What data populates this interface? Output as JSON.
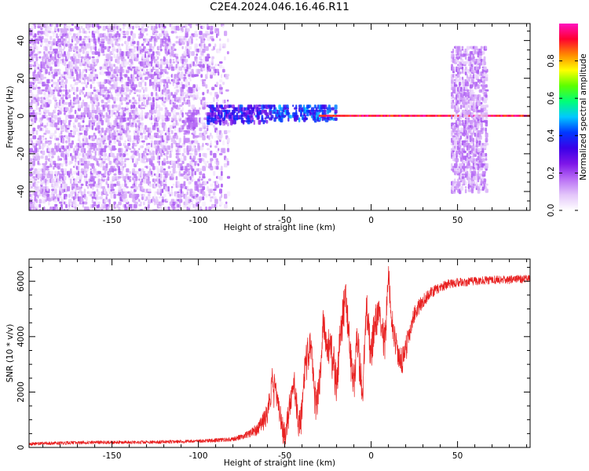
{
  "figure": {
    "title": "C2E4.2024.046.16.46.R11"
  },
  "colors": {
    "snr_line": "#e82020",
    "axes": "#000000",
    "colormap": [
      "#ffffff",
      "#e3c6fa",
      "#b96ff5",
      "#7e16e8",
      "#3a00e8",
      "#0038ff",
      "#00c8ff",
      "#00ff78",
      "#5cff00",
      "#ffff00",
      "#ff8a00",
      "#ff0030",
      "#ff10c0"
    ]
  },
  "chart_data": [
    {
      "type": "heatmap",
      "title": "",
      "xlabel": "Height of straight line (km)",
      "ylabel": "Frequency (Hz)",
      "xlim": [
        -198,
        92
      ],
      "ylim": [
        -50,
        49
      ],
      "x_ticks": [
        -150,
        -100,
        -50,
        0,
        50
      ],
      "y_ticks": [
        -40,
        -20,
        0,
        20,
        40
      ],
      "colorbar": {
        "label": "Normalized spectral amplitude",
        "range": [
          0,
          1
        ],
        "ticks": [
          "0.0",
          "0.2",
          "0.4",
          "0.6",
          "0.8"
        ],
        "tick_values": [
          0.0,
          0.2,
          0.4,
          0.6,
          0.8
        ]
      },
      "regions": [
        {
          "x": [
            -198,
            -82
          ],
          "f": [
            -50,
            49
          ],
          "amplitude": [
            0.02,
            0.2
          ],
          "description": "broadband noise"
        },
        {
          "x": [
            -107,
            -100
          ],
          "f": [
            -6,
            3
          ],
          "amplitude": [
            0.15,
            0.2
          ]
        },
        {
          "x": [
            -95,
            -60
          ],
          "f": [
            -4,
            6
          ],
          "amplitude": [
            0.2,
            0.45
          ]
        },
        {
          "x": [
            -60,
            -20
          ],
          "f": [
            -2,
            6
          ],
          "amplitude": [
            0.3,
            0.5
          ]
        },
        {
          "x": [
            -30,
            92
          ],
          "f": [
            -1,
            1
          ],
          "amplitude": [
            0.85,
            1.0
          ],
          "description": "narrow tone at 0 Hz"
        },
        {
          "x": [
            46,
            67
          ],
          "f": [
            -40,
            37
          ],
          "amplitude": [
            0.05,
            0.2
          ]
        }
      ]
    },
    {
      "type": "line",
      "title": "",
      "xlabel": "Height of straight line (km)",
      "ylabel": "SNR (10 * v/v)",
      "xlim": [
        -198,
        92
      ],
      "ylim": [
        0,
        6800
      ],
      "x_ticks": [
        -150,
        -100,
        -50,
        0,
        50
      ],
      "y_ticks": [
        0,
        2000,
        4000,
        6000
      ],
      "series": [
        {
          "x": [
            -198,
            -180,
            -160,
            -140,
            -120,
            -100,
            -90,
            -80,
            -75,
            -70,
            -65,
            -60,
            -57,
            -55,
            -52,
            -50,
            -48,
            -45,
            -42,
            -40,
            -38,
            -35,
            -32,
            -30,
            -28,
            -25,
            -22,
            -20,
            -18,
            -15,
            -13,
            -10,
            -8,
            -5,
            -3,
            0,
            2,
            5,
            8,
            10,
            12,
            15,
            18,
            20,
            25,
            30,
            35,
            40,
            45,
            50,
            60,
            70,
            80,
            92
          ],
          "y": [
            130,
            160,
            180,
            190,
            200,
            230,
            260,
            300,
            380,
            500,
            700,
            1200,
            2500,
            1900,
            900,
            500,
            1100,
            2500,
            900,
            1300,
            3100,
            3800,
            1500,
            2300,
            4400,
            3700,
            3300,
            2200,
            3900,
            5600,
            4100,
            2300,
            4200,
            1800,
            5200,
            3400,
            4500,
            4800,
            3700,
            6400,
            4600,
            3500,
            3100,
            3600,
            4800,
            5300,
            5600,
            5800,
            5900,
            5950,
            6000,
            6050,
            6050,
            6100
          ],
          "noise_amplitude": [
            60,
            60,
            60,
            60,
            60,
            60,
            70,
            80,
            100,
            150,
            250,
            400,
            550,
            500,
            400,
            400,
            500,
            550,
            500,
            550,
            600,
            650,
            650,
            650,
            650,
            650,
            650,
            650,
            650,
            650,
            650,
            650,
            650,
            650,
            650,
            650,
            650,
            600,
            600,
            600,
            550,
            500,
            450,
            400,
            300,
            250,
            200,
            180,
            170,
            160,
            150,
            150,
            150,
            150
          ]
        }
      ]
    }
  ]
}
